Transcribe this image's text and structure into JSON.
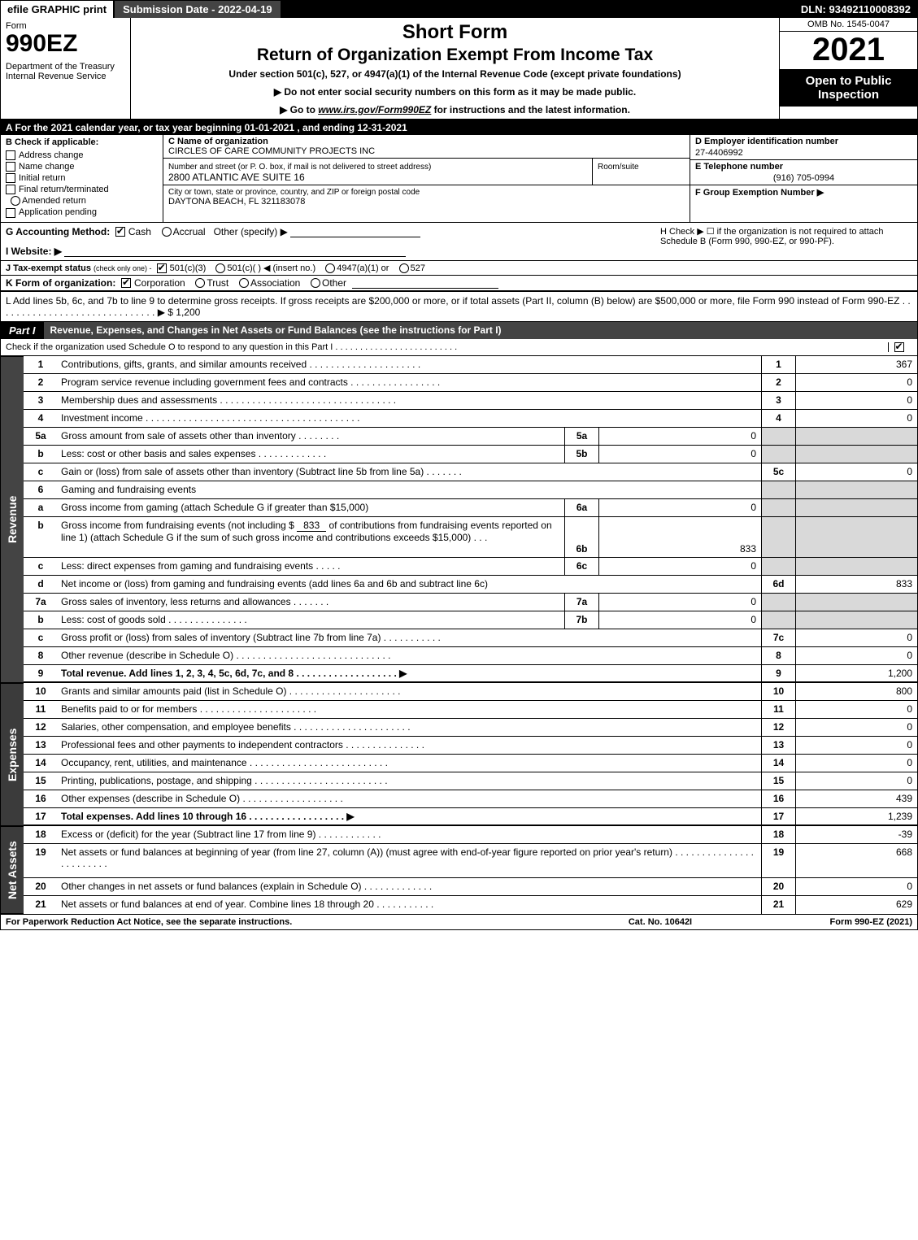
{
  "topbar": {
    "efile": "efile GRAPHIC print",
    "submission": "Submission Date - 2022-04-19",
    "dln": "DLN: 93492110008392"
  },
  "header": {
    "form_label": "Form",
    "form_number": "990EZ",
    "dept": "Department of the Treasury\nInternal Revenue Service",
    "short_form": "Short Form",
    "title": "Return of Organization Exempt From Income Tax",
    "under": "Under section 501(c), 527, or 4947(a)(1) of the Internal Revenue Code (except private foundations)",
    "arrow1": "▶ Do not enter social security numbers on this form as it may be made public.",
    "arrow2_pre": "▶ Go to ",
    "arrow2_link": "www.irs.gov/Form990EZ",
    "arrow2_post": " for instructions and the latest information.",
    "omb": "OMB No. 1545-0047",
    "year": "2021",
    "open": "Open to Public Inspection"
  },
  "lineA": "A  For the 2021 calendar year, or tax year beginning 01-01-2021 , and ending 12-31-2021",
  "colB": {
    "hdr": "B  Check if applicable:",
    "opts": [
      "Address change",
      "Name change",
      "Initial return",
      "Final return/terminated",
      "Amended return",
      "Application pending"
    ]
  },
  "colC": {
    "name_lbl": "C Name of organization",
    "name_val": "CIRCLES OF CARE COMMUNITY PROJECTS INC",
    "addr_lbl": "Number and street (or P. O. box, if mail is not delivered to street address)",
    "addr_val": "2800 ATLANTIC AVE SUITE 16",
    "room_lbl": "Room/suite",
    "city_lbl": "City or town, state or province, country, and ZIP or foreign postal code",
    "city_val": "DAYTONA BEACH, FL  321183078"
  },
  "colD": {
    "ein_lbl": "D Employer identification number",
    "ein_val": "27-4406992",
    "tel_lbl": "E Telephone number",
    "tel_val": "(916) 705-0994",
    "grp_lbl": "F Group Exemption Number   ▶"
  },
  "lineG": {
    "label": "G Accounting Method:",
    "cash": "Cash",
    "accrual": "Accrual",
    "other": "Other (specify) ▶"
  },
  "lineH": {
    "text": "H  Check ▶ ☐ if the organization is not required to attach Schedule B (Form 990, 990-EZ, or 990-PF)."
  },
  "lineI": {
    "label": "I Website: ▶"
  },
  "lineJ": {
    "label": "J Tax-exempt status",
    "note": "(check only one) -",
    "o1": "501(c)(3)",
    "o2": "501(c)(  ) ◀ (insert no.)",
    "o3": "4947(a)(1) or",
    "o4": "527"
  },
  "lineK": {
    "label": "K Form of organization:",
    "o1": "Corporation",
    "o2": "Trust",
    "o3": "Association",
    "o4": "Other"
  },
  "lineL": {
    "text": "L Add lines 5b, 6c, and 7b to line 9 to determine gross receipts. If gross receipts are $200,000 or more, or if total assets (Part II, column (B) below) are $500,000 or more, file Form 990 instead of Form 990-EZ  . . . . . . . . . . . . . . . . . . . . . . . . . . . . . .  ▶ $ 1,200"
  },
  "partI": {
    "tab": "Part I",
    "title": "Revenue, Expenses, and Changes in Net Assets or Fund Balances (see the instructions for Part I)",
    "sub": "Check if the organization used Schedule O to respond to any question in this Part I  . . . . . . . . . . . . . . . . . . . . . . . . ."
  },
  "revenue_tab": "Revenue",
  "expenses_tab": "Expenses",
  "netassets_tab": "Net Assets",
  "rows": {
    "r1": {
      "ln": "1",
      "desc": "Contributions, gifts, grants, and similar amounts received  . . . . . . . . . . . . . . . . . . . . .",
      "col": "1",
      "val": "367"
    },
    "r2": {
      "ln": "2",
      "desc": "Program service revenue including government fees and contracts  . . . . . . . . . . . . . . . . .",
      "col": "2",
      "val": "0"
    },
    "r3": {
      "ln": "3",
      "desc": "Membership dues and assessments  . . . . . . . . . . . . . . . . . . . . . . . . . . . . . . . . .",
      "col": "3",
      "val": "0"
    },
    "r4": {
      "ln": "4",
      "desc": "Investment income  . . . . . . . . . . . . . . . . . . . . . . . . . . . . . . . . . . . . . . . .",
      "col": "4",
      "val": "0"
    },
    "r5a": {
      "ln": "5a",
      "desc": "Gross amount from sale of assets other than inventory  . . . . . . . .",
      "mini": "5a",
      "mval": "0"
    },
    "r5b": {
      "ln": "b",
      "desc": "Less: cost or other basis and sales expenses  . . . . . . . . . . . . .",
      "mini": "5b",
      "mval": "0"
    },
    "r5c": {
      "ln": "c",
      "desc": "Gain or (loss) from sale of assets other than inventory (Subtract line 5b from line 5a)  . . . . . . .",
      "col": "5c",
      "val": "0"
    },
    "r6": {
      "ln": "6",
      "desc": "Gaming and fundraising events"
    },
    "r6a": {
      "ln": "a",
      "desc": "Gross income from gaming (attach Schedule G if greater than $15,000)",
      "mini": "6a",
      "mval": "0"
    },
    "r6b_pre": "Gross income from fundraising events (not including $ ",
    "r6b_amt": "833",
    "r6b_mid": " of contributions from fundraising events reported on line 1) (attach Schedule G if the sum of such gross income and contributions exceeds $15,000)    . .   .",
    "r6b": {
      "ln": "b",
      "mini": "6b",
      "mval": "833"
    },
    "r6c": {
      "ln": "c",
      "desc": "Less: direct expenses from gaming and fundraising events    . . . . .",
      "mini": "6c",
      "mval": "0"
    },
    "r6d": {
      "ln": "d",
      "desc": "Net income or (loss) from gaming and fundraising events (add lines 6a and 6b and subtract line 6c)",
      "col": "6d",
      "val": "833"
    },
    "r7a": {
      "ln": "7a",
      "desc": "Gross sales of inventory, less returns and allowances  . . . . . . .",
      "mini": "7a",
      "mval": "0"
    },
    "r7b": {
      "ln": "b",
      "desc": "Less: cost of goods sold          .   .   .   .   .   .   .   .   .   .   .   .   .   .   .",
      "mini": "7b",
      "mval": "0"
    },
    "r7c": {
      "ln": "c",
      "desc": "Gross profit or (loss) from sales of inventory (Subtract line 7b from line 7a)  . . . . . . . . . . .",
      "col": "7c",
      "val": "0"
    },
    "r8": {
      "ln": "8",
      "desc": "Other revenue (describe in Schedule O)  . . . . . . . . . . . . . . . . . . . . . . . . . . . . .",
      "col": "8",
      "val": "0"
    },
    "r9": {
      "ln": "9",
      "desc": "Total revenue. Add lines 1, 2, 3, 4, 5c, 6d, 7c, and 8  . . . . . . . . . . . . . . . . . . .   ▶",
      "col": "9",
      "val": "1,200"
    },
    "r10": {
      "ln": "10",
      "desc": "Grants and similar amounts paid (list in Schedule O)  . . . . . . . . . . . . . . . . . . . . .",
      "col": "10",
      "val": "800"
    },
    "r11": {
      "ln": "11",
      "desc": "Benefits paid to or for members          .   .   .   .   .   .   .   .   .   .   .   .   .   .   .   .   .   .   .   .   .   .",
      "col": "11",
      "val": "0"
    },
    "r12": {
      "ln": "12",
      "desc": "Salaries, other compensation, and employee benefits  . . . . . . . . . . . . . . . . . . . . . .",
      "col": "12",
      "val": "0"
    },
    "r13": {
      "ln": "13",
      "desc": "Professional fees and other payments to independent contractors  . . . . . . . . . . . . . . .",
      "col": "13",
      "val": "0"
    },
    "r14": {
      "ln": "14",
      "desc": "Occupancy, rent, utilities, and maintenance  . . . . . . . . . . . . . . . . . . . . . . . . . .",
      "col": "14",
      "val": "0"
    },
    "r15": {
      "ln": "15",
      "desc": "Printing, publications, postage, and shipping  . . . . . . . . . . . . . . . . . . . . . . . . .",
      "col": "15",
      "val": "0"
    },
    "r16": {
      "ln": "16",
      "desc": "Other expenses (describe in Schedule O)      .   .   .   .   .   .   .   .   .   .   .   .   .   .   .   .   .   .   .",
      "col": "16",
      "val": "439"
    },
    "r17": {
      "ln": "17",
      "desc": "Total expenses. Add lines 10 through 16      .   .   .   .   .   .   .   .   .   .   .   .   .   .   .   .   .   .   ▶",
      "col": "17",
      "val": "1,239"
    },
    "r18": {
      "ln": "18",
      "desc": "Excess or (deficit) for the year (Subtract line 17 from line 9)        .   .   .   .   .   .   .   .   .   .   .   .",
      "col": "18",
      "val": "-39"
    },
    "r19": {
      "ln": "19",
      "desc": "Net assets or fund balances at beginning of year (from line 27, column (A)) (must agree with end-of-year figure reported on prior year's return)  . . . . . . . . . . . . . . . . . . . . . . . .",
      "col": "19",
      "val": "668"
    },
    "r20": {
      "ln": "20",
      "desc": "Other changes in net assets or fund balances (explain in Schedule O)  . . . . . . . . . . . . .",
      "col": "20",
      "val": "0"
    },
    "r21": {
      "ln": "21",
      "desc": "Net assets or fund balances at end of year. Combine lines 18 through 20  . . . . . . . . . . .",
      "col": "21",
      "val": "629"
    }
  },
  "footer": {
    "left": "For Paperwork Reduction Act Notice, see the separate instructions.",
    "mid": "Cat. No. 10642I",
    "right_pre": "Form ",
    "right_form": "990-EZ",
    "right_post": " (2021)"
  },
  "colors": {
    "black": "#000000",
    "dark": "#3b3b3b",
    "shade": "#d9d9d9"
  }
}
